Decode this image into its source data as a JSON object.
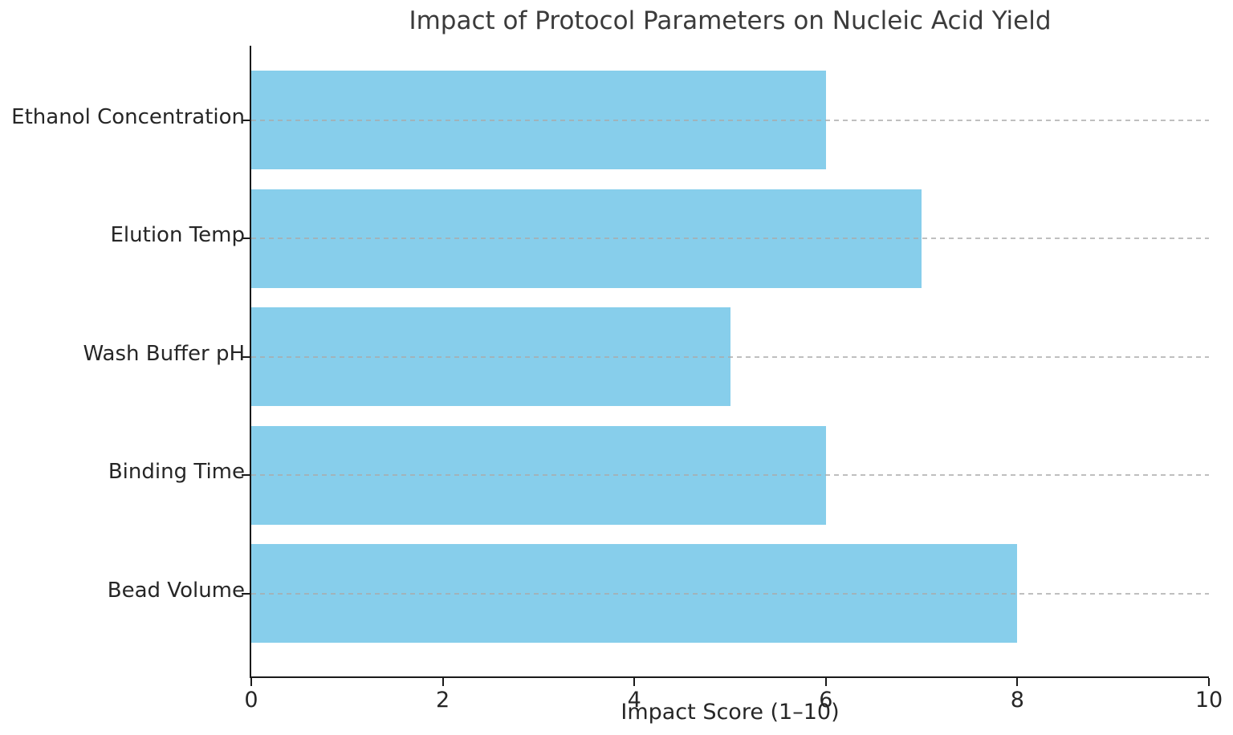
{
  "chart_data": {
    "type": "bar",
    "orientation": "horizontal",
    "title": "Impact of Protocol Parameters on Nucleic Acid Yield",
    "xlabel": "Impact Score (1–10)",
    "ylabel": "",
    "categories": [
      "Ethanol Concentration",
      "Elution Temp",
      "Wash Buffer pH",
      "Binding Time",
      "Bead Volume"
    ],
    "values": [
      6,
      7,
      5,
      6,
      8
    ],
    "xlim": [
      0,
      10
    ],
    "xticks": [
      0,
      2,
      4,
      6,
      8,
      10
    ],
    "grid": "horizontal dashed gridlines at each category, drawn over bars",
    "legend": "none",
    "colors": {
      "bar": "#87CEEB",
      "gridline": "#aaaaaa",
      "axis": "#1a1a1a",
      "title_text": "#3b3b3b",
      "tick_text": "#262626",
      "background": "#ffffff"
    }
  }
}
